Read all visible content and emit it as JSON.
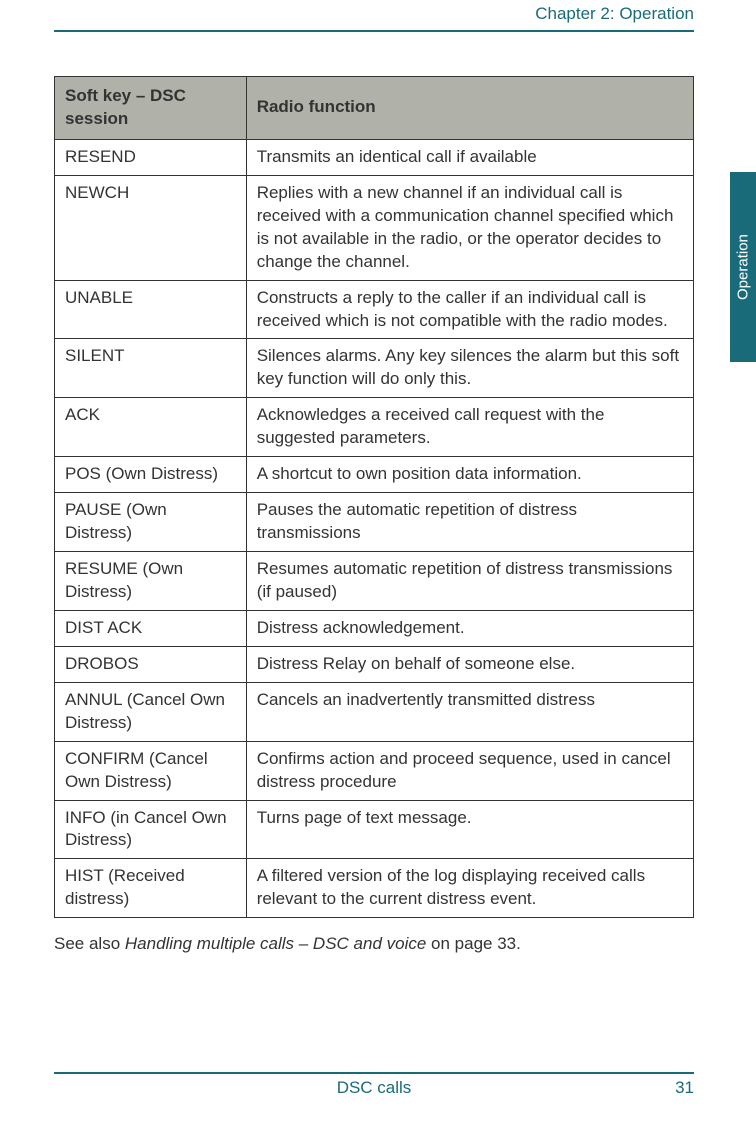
{
  "header": {
    "chapter": "Chapter 2:  Operation"
  },
  "sideTab": {
    "label": "Operation"
  },
  "table": {
    "head": {
      "col1": "Soft key – DSC session",
      "col2": "Radio function"
    },
    "rows": [
      {
        "key": "RESEND",
        "func": "Transmits an identical call if available"
      },
      {
        "key": "NEWCH",
        "func": "Replies with a new channel if an individual call is received with a communication channel specified which is not available in the radio, or the operator decides to change the channel."
      },
      {
        "key": "UNABLE",
        "func": "Constructs a reply to the caller if an individual call is received which is not compatible with the radio modes."
      },
      {
        "key": "SILENT",
        "func": "Silences alarms. Any key silences the alarm but this soft key function will do only this."
      },
      {
        "key": "ACK",
        "func": "Acknowledges a received call request with the suggested parameters."
      },
      {
        "key": "POS (Own Distress)",
        "func": "A shortcut to own position data information."
      },
      {
        "key": "PAUSE (Own Distress)",
        "func": "Pauses the automatic repetition of distress transmissions"
      },
      {
        "key": "RESUME (Own Distress)",
        "func": "Resumes automatic repetition of distress transmissions (if paused)"
      },
      {
        "key": "DIST ACK",
        "func": "Distress acknowledgement."
      },
      {
        "key": "DROBOS",
        "func": "Distress Relay on behalf of someone else."
      },
      {
        "key": "ANNUL (Cancel Own Distress)",
        "func": "Cancels an inadvertently transmitted distress"
      },
      {
        "key": "CONFIRM (Cancel Own Distress)",
        "func": "Confirms action and proceed sequence, used in cancel distress procedure"
      },
      {
        "key": "INFO (in Cancel Own Distress)",
        "func": "Turns page of text message."
      },
      {
        "key": "HIST (Received distress)",
        "func": "A filtered version of the log displaying received calls relevant to the current distress event."
      }
    ]
  },
  "seeAlso": {
    "prefix": "See also ",
    "linkText": "Handling multiple calls – DSC and voice",
    "suffix": " on page 33."
  },
  "footer": {
    "title": "DSC calls",
    "page": "31"
  },
  "colors": {
    "brand": "#1a6b7a",
    "tableHeaderBg": "#b0b2a9",
    "border": "#333333",
    "text": "#333333",
    "background": "#ffffff"
  }
}
